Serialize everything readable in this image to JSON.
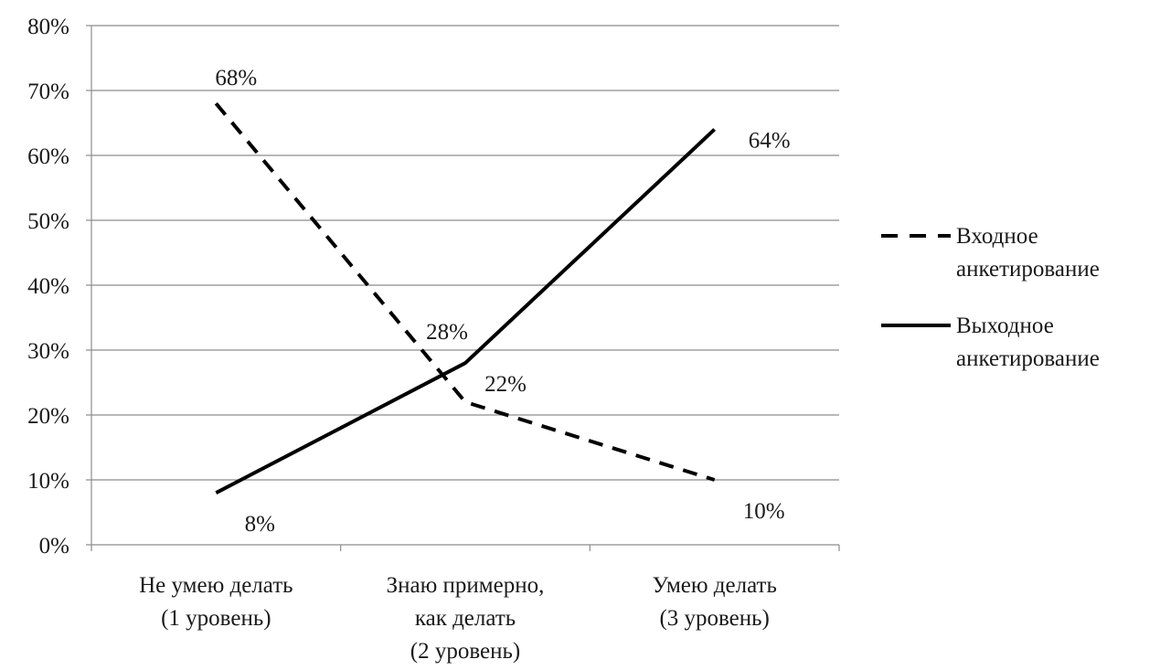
{
  "chart_data": {
    "type": "line",
    "title": "",
    "xlabel": "",
    "ylabel": "",
    "categories": [
      [
        "Не умею делать",
        "(1 уровень)"
      ],
      [
        "Знаю примерно,",
        "как делать",
        "(2 уровень)"
      ],
      [
        "Умею делать",
        "(3 уровень)"
      ]
    ],
    "ylim": [
      0,
      80
    ],
    "yticks": [
      "0%",
      "10%",
      "20%",
      "30%",
      "40%",
      "50%",
      "60%",
      "70%",
      "80%"
    ],
    "grid": true,
    "legend_position": "right",
    "series": [
      {
        "name": [
          "Входное",
          "анкетирование"
        ],
        "style": "dashed",
        "color": "#000000",
        "values": [
          68,
          22,
          10
        ],
        "labels": [
          "68%",
          "22%",
          "10%"
        ]
      },
      {
        "name": [
          "Выходное",
          "анкетирование"
        ],
        "style": "solid",
        "color": "#000000",
        "values": [
          8,
          28,
          64
        ],
        "labels": [
          "8%",
          "28%",
          "64%"
        ]
      }
    ]
  }
}
